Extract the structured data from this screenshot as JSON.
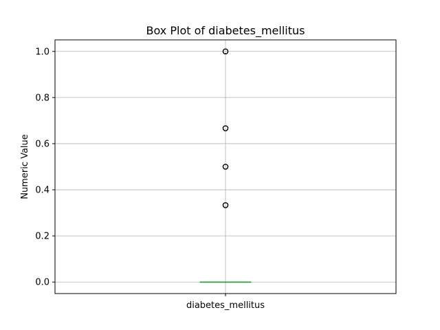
{
  "chart_data": {
    "type": "box",
    "title": "Box Plot of diabetes_mellitus",
    "xlabel": "",
    "ylabel": "Numeric Value",
    "categories": [
      "diabetes_mellitus"
    ],
    "ylim": [
      -0.05,
      1.05
    ],
    "yticks": [
      0.0,
      0.2,
      0.4,
      0.6,
      0.8,
      1.0
    ],
    "ytick_labels": [
      "0.0",
      "0.2",
      "0.4",
      "0.6",
      "0.8",
      "1.0"
    ],
    "grid": true,
    "boxes": [
      {
        "name": "diabetes_mellitus",
        "min": 0.0,
        "q1": 0.0,
        "median": 0.0,
        "q3": 0.0,
        "max": 0.0,
        "outliers": [
          0.3333,
          0.5,
          0.6667,
          1.0
        ]
      }
    ],
    "colors": {
      "box": "#1f77b4",
      "median": "#2ca02c",
      "outlier_edge": "#000000",
      "grid": "#b0b0b0"
    }
  }
}
